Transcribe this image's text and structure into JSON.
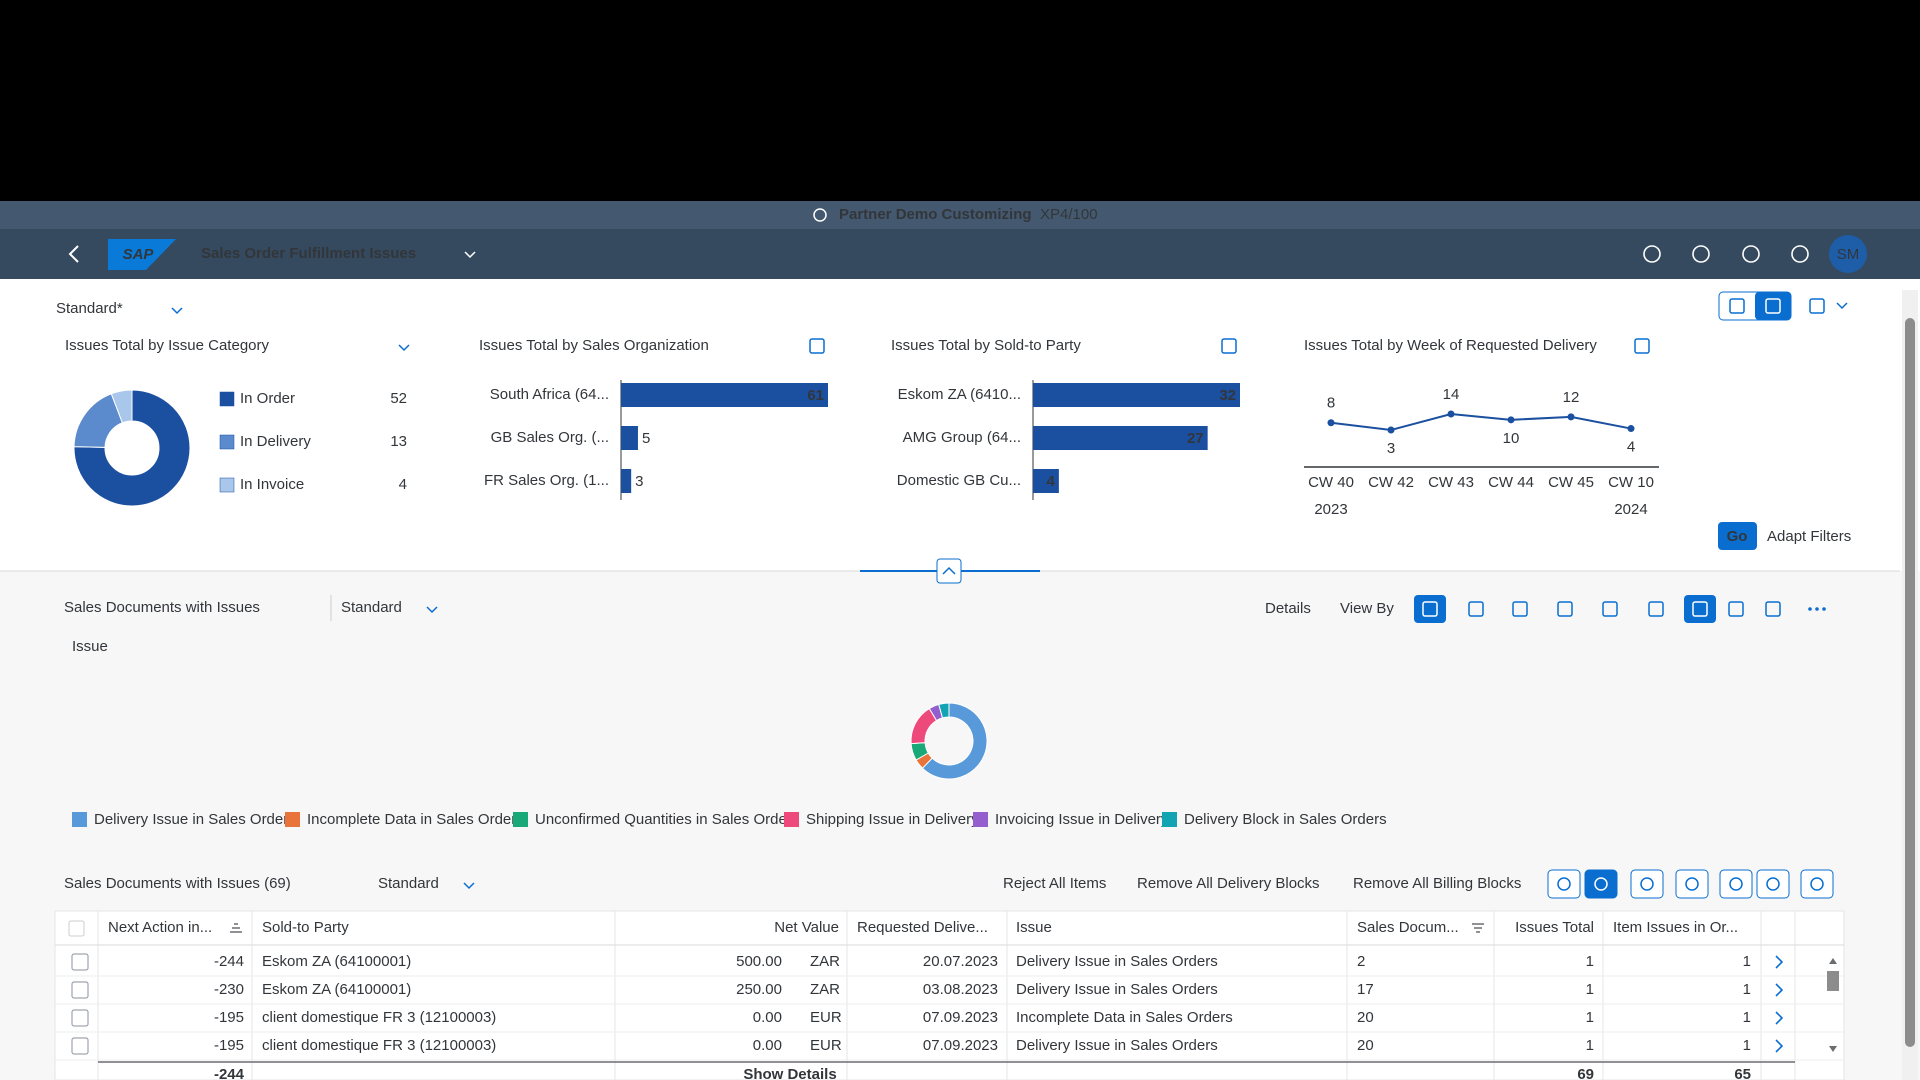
{
  "shell": {
    "system": "Partner Demo Customizing",
    "client": "XP4/100",
    "logo": "SAP",
    "app_title": "Sales Order Fulfillment Issues",
    "avatar": "SM"
  },
  "variant": "Standard*",
  "cards": [
    {
      "type": "donut",
      "title": "Issues Total by Issue Category",
      "categories": [
        "In Order",
        "In Delivery",
        "In Invoice"
      ],
      "values": [
        52,
        13,
        4
      ],
      "colors": [
        "#1b4fa0",
        "#5b8bcc",
        "#a9c6eb"
      ]
    },
    {
      "type": "bar",
      "title": "Issues Total by Sales Organization",
      "categories": [
        "South Africa (64...",
        "GB Sales Org. (...",
        "FR Sales Org. (1..."
      ],
      "values": [
        61,
        5,
        3
      ],
      "color": "#1b4fa0"
    },
    {
      "type": "bar",
      "title": "Issues Total by Sold-to Party",
      "categories": [
        "Eskom ZA (6410...",
        "AMG Group (64...",
        "Domestic GB Cu..."
      ],
      "values": [
        32,
        27,
        4
      ],
      "color": "#1b4fa0"
    },
    {
      "type": "line",
      "title": "Issues Total by Week of Requested Delivery",
      "categories": [
        "CW 40",
        "CW 42",
        "CW 43",
        "CW 44",
        "CW 45",
        "CW 10"
      ],
      "years": [
        "2023",
        null,
        null,
        null,
        null,
        "2024"
      ],
      "values": [
        8,
        3,
        14,
        10,
        12,
        4
      ],
      "color": "#1b4fa0"
    }
  ],
  "filter_actions": {
    "go": "Go",
    "adapt": "Adapt Filters"
  },
  "chart_section": {
    "title": "Sales Documents with Issues",
    "variant": "Standard",
    "details": "Details",
    "view_by": "View By",
    "dimension": "Issue",
    "chart": {
      "type": "donut",
      "categories": [
        "Delivery Issue in Sales Orders",
        "Incomplete Data in Sales Orders",
        "Unconfirmed Quantities in Sales Orders",
        "Shipping Issue in Delivery",
        "Invoicing Issue in Delivery",
        "Delivery Block in Sales Orders"
      ],
      "values": [
        43,
        3,
        5,
        12,
        3,
        3
      ],
      "colors": [
        "#5899da",
        "#e8743b",
        "#19a979",
        "#ed4a7b",
        "#945ecf",
        "#13a4b4"
      ]
    }
  },
  "table": {
    "title": "Sales Documents with Issues (69)",
    "variant": "Standard",
    "actions": [
      "Reject All Items",
      "Remove All Delivery Blocks",
      "Remove All Billing Blocks"
    ],
    "columns": [
      "Next Action in...",
      "Sold-to Party",
      "Net Value",
      "Requested Delive...",
      "Issue",
      "Sales Docum...",
      "Issues Total",
      "Item Issues in Or..."
    ],
    "rows": [
      [
        "-244",
        "Eskom ZA (64100001)",
        "500.00",
        "ZAR",
        "20.07.2023",
        "Delivery Issue in Sales Orders",
        "2",
        "1",
        "1"
      ],
      [
        "-230",
        "Eskom ZA (64100001)",
        "250.00",
        "ZAR",
        "03.08.2023",
        "Delivery Issue in Sales Orders",
        "17",
        "1",
        "1"
      ],
      [
        "-195",
        "client domestique FR 3 (12100003)",
        "0.00",
        "EUR",
        "07.09.2023",
        "Incomplete Data in Sales Orders",
        "20",
        "1",
        "1"
      ],
      [
        "-195",
        "client domestique FR 3 (12100003)",
        "0.00",
        "EUR",
        "07.09.2023",
        "Delivery Issue in Sales Orders",
        "20",
        "1",
        "1"
      ]
    ],
    "footer": {
      "next_action": "-244",
      "show_details": "Show Details",
      "issues_total": "69",
      "item_issues": "65"
    }
  }
}
